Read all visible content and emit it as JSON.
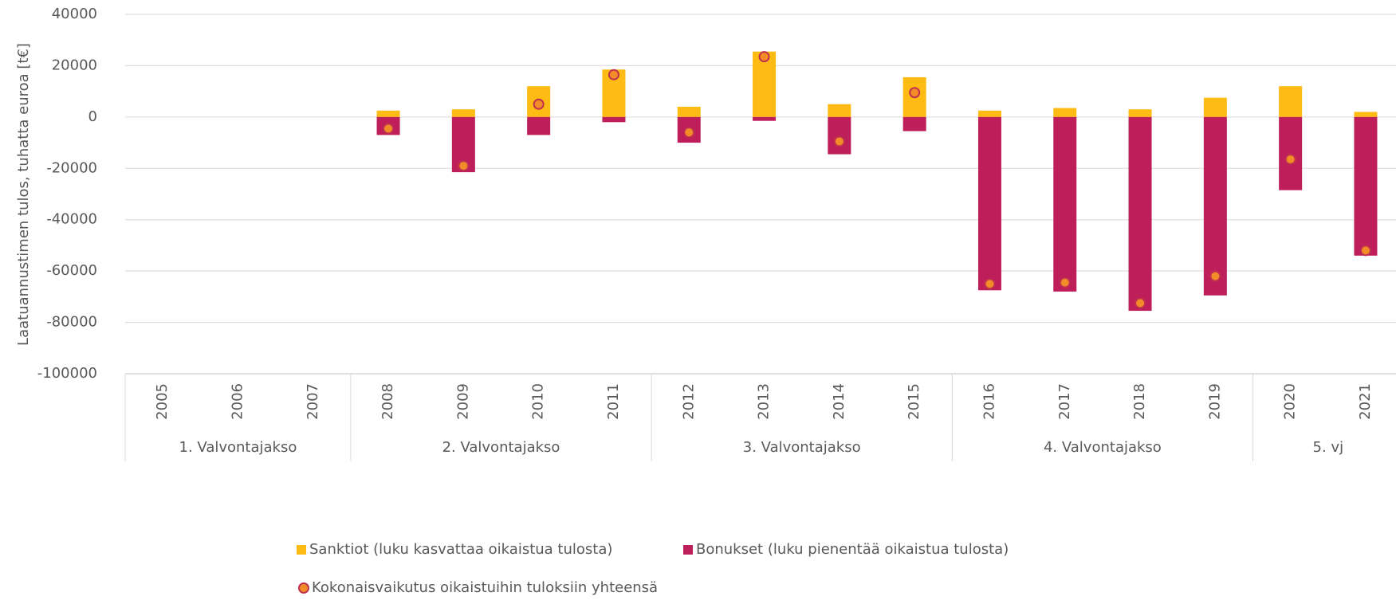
{
  "chart_data": {
    "type": "bar",
    "y_label": "Laatuannustimen tulos, tuhatta euroa [t€]",
    "categories": [
      "2005",
      "2006",
      "2007",
      "2008",
      "2009",
      "2010",
      "2011",
      "2012",
      "2013",
      "2014",
      "2015",
      "2016",
      "2017",
      "2018",
      "2019",
      "2020",
      "2021"
    ],
    "category_groups": [
      "1. Valvontajakso",
      null,
      null,
      "2. Valvontajakso",
      null,
      null,
      null,
      "3. Valvontajakso",
      null,
      null,
      null,
      "4. Valvontajakso",
      null,
      null,
      null,
      "5. vj",
      null
    ],
    "series": [
      {
        "name": "Sanktiot (luku kasvattaa oikaistua tulosta)",
        "color": "#fdbb13",
        "kind": "bar",
        "values": [
          null,
          null,
          null,
          2500,
          3000,
          12000,
          18500,
          4000,
          25500,
          5000,
          15500,
          2500,
          3500,
          3000,
          7500,
          12000,
          2000
        ]
      },
      {
        "name": "Bonukset (luku pienentää oikaistua tulosta)",
        "color": "#be1e5a",
        "kind": "bar",
        "values": [
          null,
          null,
          null,
          -7000,
          -21500,
          -7000,
          -2000,
          -10000,
          -1500,
          -14500,
          -5500,
          -67500,
          -68000,
          -75500,
          -69500,
          -28500,
          -54000
        ]
      },
      {
        "name": "Kokonaisvaikutus oikaistuihin tuloksiin yhteensä",
        "color": "#f28c28",
        "kind": "marker",
        "values": [
          null,
          null,
          null,
          -4500,
          -19000,
          5000,
          16500,
          -6000,
          23500,
          -9500,
          9500,
          -65000,
          -64500,
          -72500,
          -62000,
          -16500,
          -52000
        ]
      }
    ],
    "ylim": [
      -100000,
      40000
    ],
    "yticks": [
      -100000,
      -80000,
      -60000,
      -40000,
      -20000,
      0,
      20000,
      40000
    ],
    "grid": true
  }
}
